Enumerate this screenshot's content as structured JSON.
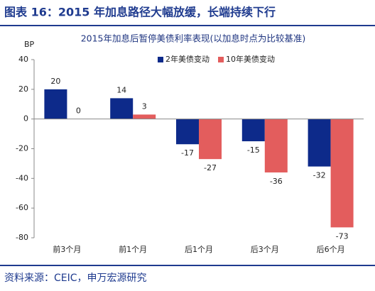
{
  "caption": "图表 16：2015 年加息路径大幅放缓，长端持续下行",
  "source": "资料来源：CEIC，申万宏源研究",
  "chart_data": {
    "type": "bar",
    "title": "2015年加息后暂停美债利率表现(以加息时点为比较基准)",
    "y_label": "BP",
    "categories": [
      "前3个月",
      "前1个月",
      "后1个月",
      "后3个月",
      "后6个月"
    ],
    "series": [
      {
        "name": "2年美债变动",
        "color": "#0d2a8a",
        "values": [
          20,
          14,
          -17,
          -15,
          -32
        ]
      },
      {
        "name": "10年美债变动",
        "color": "#e35d5d",
        "values": [
          0,
          3,
          -27,
          -36,
          -73
        ]
      }
    ],
    "ylim": [
      -80,
      40
    ],
    "yticks": [
      40,
      20,
      0,
      -20,
      -40,
      -60,
      -80
    ],
    "grid": false,
    "legend": "top"
  }
}
